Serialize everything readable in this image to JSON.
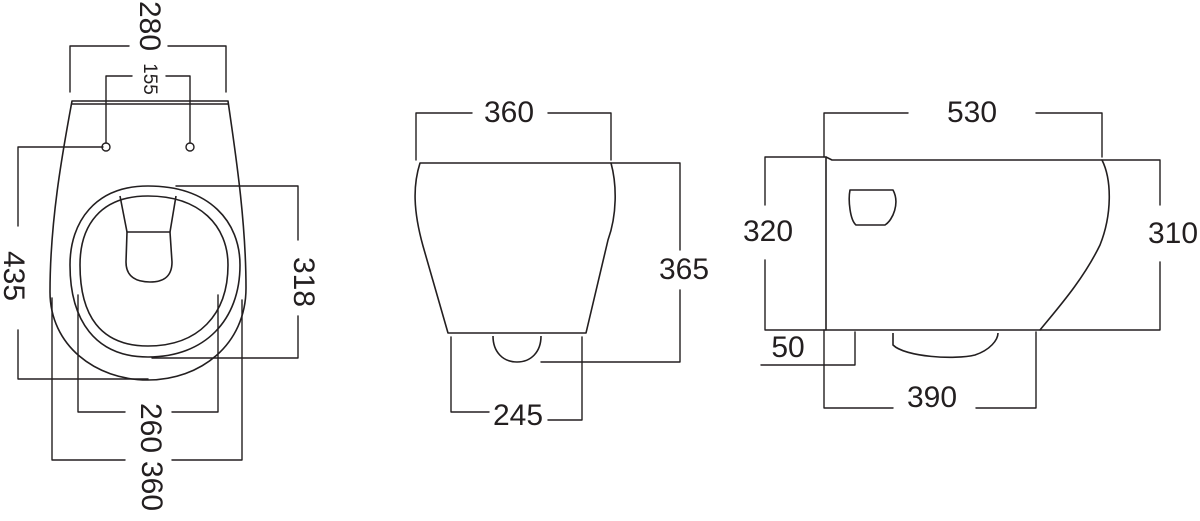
{
  "top_view": {
    "overall_width": "280",
    "fixing_centres": "155",
    "overall_length": "435",
    "bowl_opening_length": "318",
    "bowl_inner_width": "260",
    "rim_width": "360"
  },
  "front_view": {
    "top_width": "360",
    "height": "365",
    "base_width": "245"
  },
  "side_view": {
    "projection": "530",
    "rear_height": "320",
    "front_height": "310",
    "base_offset": "50",
    "base_length": "390"
  }
}
